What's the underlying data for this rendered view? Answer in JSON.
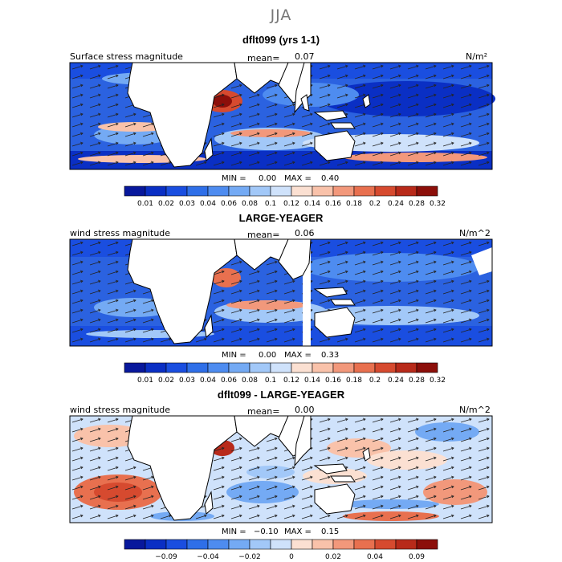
{
  "season": "JJA",
  "panels": [
    {
      "title": "dflt099 (yrs 1-1)",
      "field_label": "Surface stress magnitude",
      "mean_label": "mean=",
      "mean_value": "0.07",
      "units": "N/m²",
      "min_label": "MIN =",
      "min_value": "0.00",
      "max_label": "MAX =",
      "max_value": "0.40",
      "colorbar": {
        "colors": [
          "#08189c",
          "#0a2fc4",
          "#1a4ee0",
          "#2f6fe8",
          "#4e8cf0",
          "#74aaf4",
          "#a2c8f8",
          "#cfe2fb",
          "#fbe0d2",
          "#f9c2aa",
          "#f2987b",
          "#e8704f",
          "#d64a2f",
          "#b82a1a",
          "#8c0f0a"
        ],
        "ticks": [
          "0.01",
          "0.02",
          "0.03",
          "0.04",
          "0.06",
          "0.08",
          "0.1",
          "0.12",
          "0.14",
          "0.16",
          "0.18",
          "0.2",
          "0.24",
          "0.28",
          "0.32"
        ]
      }
    },
    {
      "title": "LARGE-YEAGER",
      "field_label": "wind stress magnitude",
      "mean_label": "mean=",
      "mean_value": "0.06",
      "units": "N/m^2",
      "min_label": "MIN =",
      "min_value": "0.00",
      "max_label": "MAX =",
      "max_value": "0.33",
      "colorbar": {
        "colors": [
          "#08189c",
          "#0a2fc4",
          "#1a4ee0",
          "#2f6fe8",
          "#4e8cf0",
          "#74aaf4",
          "#a2c8f8",
          "#cfe2fb",
          "#fbe0d2",
          "#f9c2aa",
          "#f2987b",
          "#e8704f",
          "#d64a2f",
          "#b82a1a",
          "#8c0f0a"
        ],
        "ticks": [
          "0.01",
          "0.02",
          "0.03",
          "0.04",
          "0.06",
          "0.08",
          "0.1",
          "0.12",
          "0.14",
          "0.16",
          "0.18",
          "0.2",
          "0.24",
          "0.28",
          "0.32"
        ]
      }
    },
    {
      "title": "dflt099 - LARGE-YEAGER",
      "field_label": "wind stress magnitude",
      "mean_label": "mean=",
      "mean_value": "0.00",
      "units": "N/m^2",
      "min_label": "MIN =",
      "min_value": "−0.10",
      "max_label": "MAX =",
      "max_value": "0.15",
      "colorbar": {
        "colors": [
          "#08189c",
          "#0a2fc4",
          "#1a4ee0",
          "#2f6fe8",
          "#4e8cf0",
          "#74aaf4",
          "#a2c8f8",
          "#cfe2fb",
          "#fbe0d2",
          "#f9c2aa",
          "#f2987b",
          "#e8704f",
          "#d64a2f",
          "#b82a1a",
          "#8c0f0a"
        ],
        "ticks": [
          "",
          "−0.09",
          "",
          "−0.04",
          "",
          "−0.02",
          "",
          "0",
          "",
          "0.02",
          "",
          "0.04",
          "",
          "0.09",
          ""
        ]
      }
    }
  ]
}
